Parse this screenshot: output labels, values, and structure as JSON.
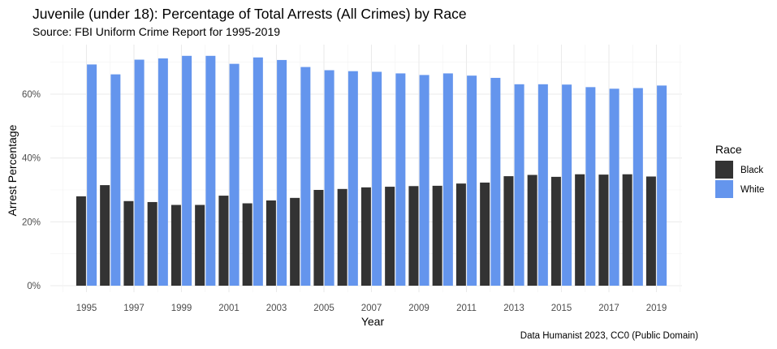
{
  "chart_data": {
    "type": "bar",
    "title": "Juvenile (under 18): Percentage of Total Arrests (All Crimes) by Race",
    "subtitle": "Source: FBI Uniform Crime Report for 1995-2019",
    "xlabel": "Year",
    "ylabel": "Arrest Percentage",
    "caption": "Data Humanist 2023, CC0 (Public Domain)",
    "legend_title": "Race",
    "legend_position": "right",
    "grid": true,
    "ylim": [
      0,
      75
    ],
    "yticks": [
      0,
      20,
      40,
      60
    ],
    "ytick_labels": [
      "0%",
      "20%",
      "40%",
      "60%"
    ],
    "xticks": [
      1995,
      1997,
      1999,
      2001,
      2003,
      2005,
      2007,
      2009,
      2011,
      2013,
      2015,
      2017,
      2019
    ],
    "x": [
      1995,
      1996,
      1997,
      1998,
      1999,
      2000,
      2001,
      2002,
      2003,
      2004,
      2005,
      2006,
      2007,
      2008,
      2009,
      2010,
      2011,
      2012,
      2013,
      2014,
      2015,
      2016,
      2017,
      2018,
      2019
    ],
    "series": [
      {
        "name": "Black",
        "color": "#333333",
        "values": [
          28.0,
          31.5,
          26.5,
          26.2,
          25.3,
          25.3,
          28.2,
          25.8,
          26.7,
          27.5,
          30.0,
          30.3,
          30.8,
          31.0,
          31.2,
          31.3,
          32.0,
          32.3,
          34.3,
          34.7,
          34.1,
          34.9,
          34.8,
          34.9,
          34.2
        ]
      },
      {
        "name": "White",
        "color": "#6495ED",
        "values": [
          69.3,
          66.2,
          70.8,
          71.2,
          72.0,
          72.0,
          69.5,
          71.5,
          70.7,
          68.5,
          67.5,
          67.2,
          67.0,
          66.5,
          66.0,
          66.5,
          65.8,
          65.1,
          63.1,
          63.1,
          63.0,
          62.2,
          61.7,
          61.9,
          62.7
        ]
      }
    ]
  }
}
